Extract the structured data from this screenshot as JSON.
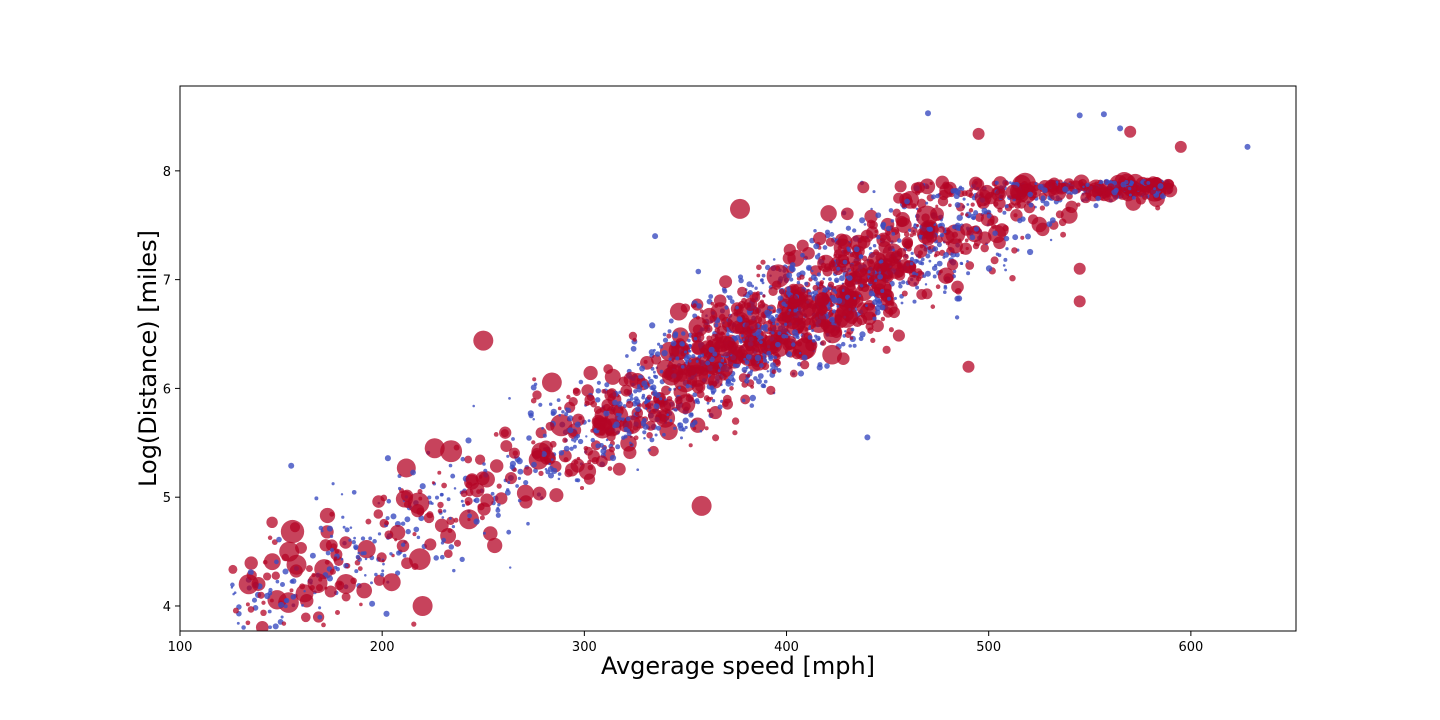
{
  "chart_data": {
    "type": "scatter",
    "title": "",
    "xlabel": "Avgerage speed [mph]",
    "ylabel": "Log(Distance) [miles]",
    "xlim": [
      100,
      652
    ],
    "ylim": [
      3.77,
      8.78
    ],
    "xticks": [
      100,
      200,
      300,
      400,
      500,
      600
    ],
    "yticks": [
      4,
      5,
      6,
      7,
      8
    ],
    "grid": false,
    "legend": "none",
    "trend": {
      "slope": 0.0102,
      "intercept": 2.55,
      "x_range": [
        125,
        630
      ],
      "spread_y": 0.28,
      "distance_max": 7.9
    },
    "series": [
      {
        "color": "#3b4cc0",
        "opacity": 0.8,
        "marker_size": "small",
        "sample_points": [
          {
            "x": 628,
            "y": 8.22
          },
          {
            "x": 557,
            "y": 8.52
          },
          {
            "x": 470,
            "y": 8.53
          },
          {
            "x": 545,
            "y": 8.51
          },
          {
            "x": 585,
            "y": 7.86
          },
          {
            "x": 135,
            "y": 4.31
          },
          {
            "x": 150,
            "y": 4.01
          },
          {
            "x": 195,
            "y": 4.02
          },
          {
            "x": 155,
            "y": 5.29
          },
          {
            "x": 565,
            "y": 8.39
          },
          {
            "x": 335,
            "y": 7.4
          },
          {
            "x": 440,
            "y": 5.55
          }
        ]
      },
      {
        "color": "#b40426",
        "opacity": 0.75,
        "marker_size": "varied",
        "sample_points": [
          {
            "x": 134,
            "y": 4.2
          },
          {
            "x": 220,
            "y": 4.0
          },
          {
            "x": 570,
            "y": 8.36
          },
          {
            "x": 595,
            "y": 8.22
          },
          {
            "x": 495,
            "y": 8.34
          },
          {
            "x": 438,
            "y": 7.85
          },
          {
            "x": 377,
            "y": 7.65
          },
          {
            "x": 250,
            "y": 6.44
          },
          {
            "x": 358,
            "y": 4.92
          },
          {
            "x": 226,
            "y": 5.45
          },
          {
            "x": 168,
            "y": 4.21
          },
          {
            "x": 154,
            "y": 4.5
          },
          {
            "x": 490,
            "y": 6.2
          },
          {
            "x": 545,
            "y": 6.8
          },
          {
            "x": 545,
            "y": 7.1
          }
        ]
      }
    ]
  }
}
